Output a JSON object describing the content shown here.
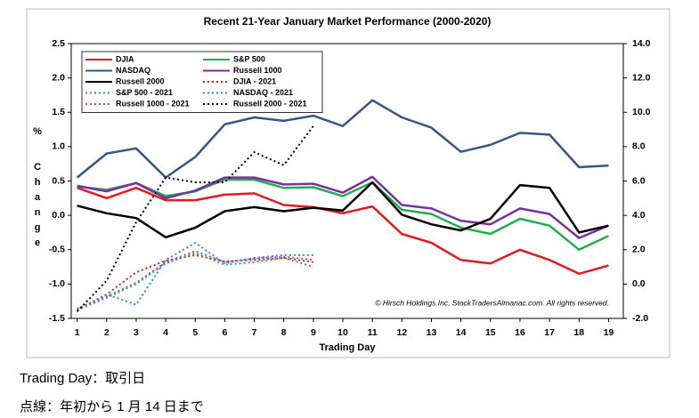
{
  "chart_data": {
    "type": "line",
    "title": "Recent 21-Year January Market Performance (2000-2020)",
    "xlabel": "Trading Day",
    "ylabel_symbol": "%",
    "ylabel": "Change",
    "annotation": "© Hirsch Holdings Inc, StockTradersAlmanac.com.  All rights reserved.",
    "x": [
      1,
      2,
      3,
      4,
      5,
      6,
      7,
      8,
      9,
      10,
      11,
      12,
      13,
      14,
      15,
      16,
      17,
      18,
      19
    ],
    "xlim": [
      0.8,
      19.5
    ],
    "xticks": [
      1,
      2,
      3,
      4,
      5,
      6,
      7,
      8,
      9,
      10,
      11,
      12,
      13,
      14,
      15,
      16,
      17,
      18,
      19
    ],
    "ylim": [
      -1.5,
      2.5
    ],
    "yticks": [
      {
        "value": -1.5,
        "label": "-1.5"
      },
      {
        "value": -1,
        "label": "-1.0"
      },
      {
        "value": -0.5,
        "label": "-0.5"
      },
      {
        "value": 0,
        "label": "0.0"
      },
      {
        "value": 0.5,
        "label": "0.5"
      },
      {
        "value": 1,
        "label": "1.0"
      },
      {
        "value": 1.5,
        "label": "1.5"
      },
      {
        "value": 2,
        "label": "2.0"
      },
      {
        "value": 2.5,
        "label": "2.5"
      }
    ],
    "y2lim": [
      -2,
      14
    ],
    "y2ticks": [
      {
        "value": -2,
        "label": "-2.0"
      },
      {
        "value": 0,
        "label": "0.0"
      },
      {
        "value": 2,
        "label": "2.0"
      },
      {
        "value": 4,
        "label": "4.0"
      },
      {
        "value": 6,
        "label": "6.0"
      },
      {
        "value": 8,
        "label": "8.0"
      },
      {
        "value": 10,
        "label": "10.0"
      },
      {
        "value": 12,
        "label": "12.0"
      },
      {
        "value": 14,
        "label": "14.0"
      }
    ],
    "grid": false,
    "legend": "upper left",
    "series": [
      {
        "name": "DJIA",
        "color": "#e41a1c",
        "style": "solid",
        "values": [
          0.4,
          0.25,
          0.4,
          0.22,
          0.22,
          0.3,
          0.32,
          0.15,
          0.12,
          0.03,
          0.13,
          -0.27,
          -0.4,
          -0.65,
          -0.7,
          -0.5,
          -0.65,
          -0.85,
          -0.73
        ]
      },
      {
        "name": "S&P 500",
        "color": "#1fae4b",
        "style": "solid",
        "values": [
          0.42,
          0.37,
          0.47,
          0.28,
          0.35,
          0.52,
          0.52,
          0.4,
          0.41,
          0.28,
          0.48,
          0.08,
          0.02,
          -0.18,
          -0.27,
          -0.05,
          -0.15,
          -0.5,
          -0.3
        ]
      },
      {
        "name": "NASDAQ",
        "color": "#34568b",
        "style": "solid",
        "axis": "y2",
        "values": [
          6.2,
          7.6,
          7.9,
          6.2,
          7.4,
          9.3,
          9.7,
          9.5,
          9.8,
          9.2,
          10.7,
          9.7,
          9.1,
          7.7,
          8.1,
          8.8,
          8.7,
          6.8,
          6.9
        ]
      },
      {
        "name": "Russell 1000",
        "color": "#7a2fa0",
        "style": "solid",
        "values": [
          0.43,
          0.35,
          0.47,
          0.25,
          0.36,
          0.55,
          0.55,
          0.45,
          0.46,
          0.33,
          0.56,
          0.15,
          0.1,
          -0.08,
          -0.13,
          0.1,
          0.02,
          -0.33,
          -0.15
        ]
      },
      {
        "name": "Russell 2000",
        "color": "#000000",
        "style": "solid",
        "values": [
          0.14,
          0.03,
          -0.04,
          -0.32,
          -0.18,
          0.06,
          0.12,
          0.06,
          0.11,
          0.07,
          0.48,
          0.01,
          -0.13,
          -0.22,
          -0.05,
          0.44,
          0.4,
          -0.25,
          -0.15
        ]
      },
      {
        "name": "DJIA - 2021",
        "color": "#e41a1c",
        "style": "dotted",
        "values": [
          -1.37,
          -1.15,
          -0.83,
          -0.66,
          -0.58,
          -0.67,
          -0.65,
          -0.62,
          -0.68,
          null,
          null,
          null,
          null,
          null,
          null,
          null,
          null,
          null,
          null
        ]
      },
      {
        "name": "S&P 500 - 2021",
        "color": "#1fae4b",
        "style": "dotted",
        "values": [
          -1.38,
          -1.2,
          -1.0,
          -0.7,
          -0.55,
          -0.72,
          -0.68,
          -0.62,
          -0.75,
          null,
          null,
          null,
          null,
          null,
          null,
          null,
          null,
          null,
          null
        ]
      },
      {
        "name": "NASDAQ - 2021",
        "color": "#2b8ad4",
        "style": "dotted",
        "values": [
          -1.38,
          -1.15,
          -1.3,
          -0.65,
          -0.4,
          -0.7,
          -0.62,
          -0.58,
          -0.58,
          null,
          null,
          null,
          null,
          null,
          null,
          null,
          null,
          null,
          null
        ]
      },
      {
        "name": "Russell 1000 - 2021",
        "color": "#9b4fc0",
        "style": "dotted",
        "values": [
          -1.36,
          -1.18,
          -0.98,
          -0.68,
          -0.52,
          -0.68,
          -0.63,
          -0.6,
          -0.65,
          null,
          null,
          null,
          null,
          null,
          null,
          null,
          null,
          null,
          null
        ]
      },
      {
        "name": "Russell 2000 - 2021",
        "color": "#000000",
        "style": "dotted",
        "values": [
          -1.4,
          -0.95,
          -0.1,
          0.55,
          0.48,
          0.48,
          0.92,
          0.73,
          1.3,
          null,
          null,
          null,
          null,
          null,
          null,
          null,
          null,
          null,
          null
        ]
      }
    ]
  },
  "notes": [
    "Trading Day：取引日",
    "点線：年初から 1 月 14 日まで"
  ]
}
